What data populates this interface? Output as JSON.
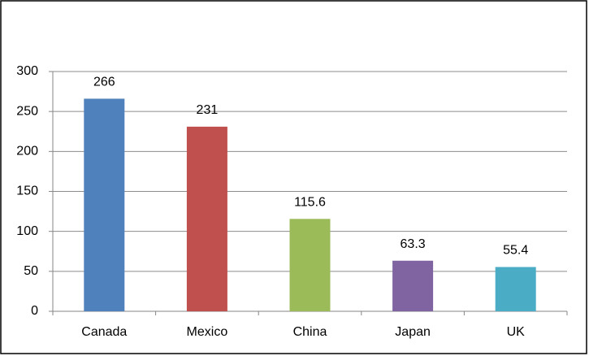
{
  "chart_data": {
    "type": "bar",
    "categories": [
      "Canada",
      "Mexico",
      "China",
      "Japan",
      "UK"
    ],
    "values": [
      266,
      231,
      115.6,
      63.3,
      55.4
    ],
    "colors": [
      "#4f81bd",
      "#c0504d",
      "#9bbb59",
      "#8064a2",
      "#4bacc6"
    ],
    "ylim": [
      0,
      300
    ],
    "yticks": [
      0,
      50,
      100,
      150,
      200,
      250,
      300
    ],
    "grid": true
  }
}
